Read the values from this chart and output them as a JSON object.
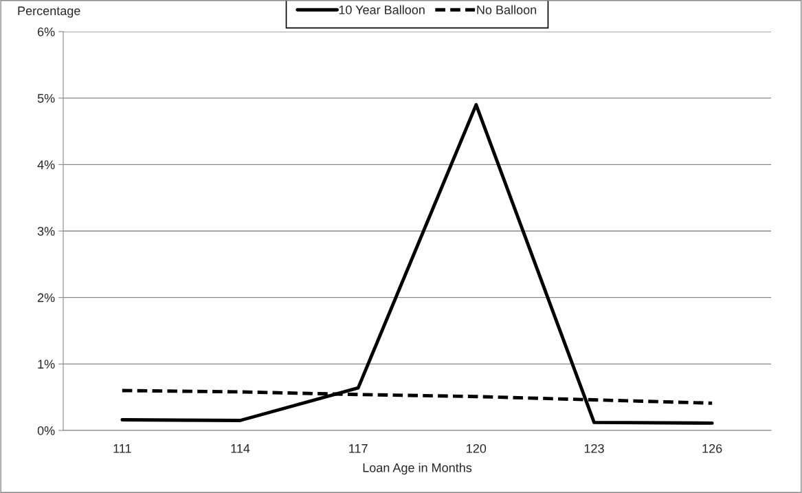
{
  "chart_data": {
    "type": "line",
    "xlabel": "Loan Age in Months",
    "ylabel": "Percentage",
    "categories": [
      "111",
      "114",
      "117",
      "120",
      "123",
      "126"
    ],
    "series": [
      {
        "name": "10 Year Balloon",
        "color": "#000000",
        "line_style": "solid",
        "values": [
          0.16,
          0.15,
          0.64,
          4.9,
          0.12,
          0.11
        ]
      },
      {
        "name": "No Balloon",
        "color": "#000000",
        "line_style": "dashed",
        "values": [
          0.6,
          0.58,
          0.54,
          0.51,
          0.46,
          0.41
        ]
      }
    ],
    "ylim": [
      0,
      6
    ],
    "yticks": [
      {
        "value": 0,
        "label": "0%"
      },
      {
        "value": 1,
        "label": "1%"
      },
      {
        "value": 2,
        "label": "2%"
      },
      {
        "value": 3,
        "label": "3%"
      },
      {
        "value": 4,
        "label": "4%"
      },
      {
        "value": 5,
        "label": "5%"
      },
      {
        "value": 6,
        "label": "6%"
      }
    ],
    "grid": "y",
    "legend": "top",
    "marker": "none"
  }
}
